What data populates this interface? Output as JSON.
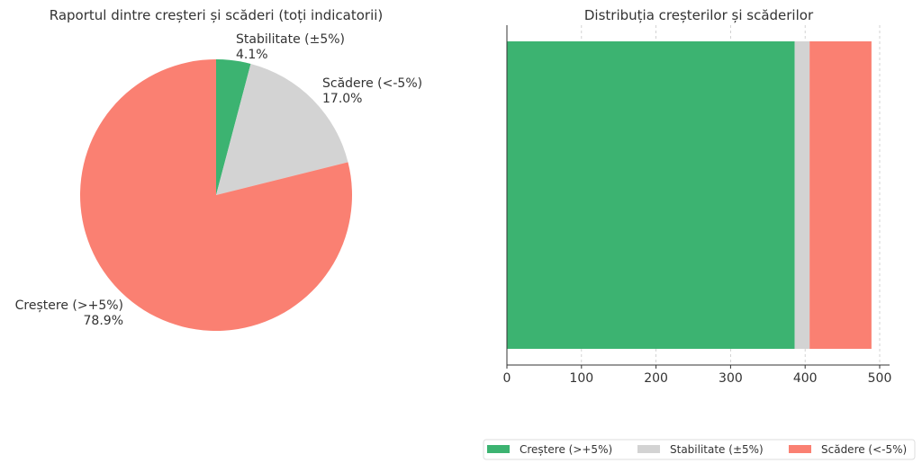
{
  "chart_data": [
    {
      "type": "pie",
      "title": "Raportul dintre creșteri și scăderi (toți indicatorii)",
      "start_angle_deg": 90,
      "direction": "clockwise",
      "slices": [
        {
          "label": "Stabilitate (±5%)",
          "value": 4.1,
          "pct_label": "4.1%",
          "color": "#3cb371"
        },
        {
          "label": "Scădere (<-5%)",
          "value": 17.0,
          "pct_label": "17.0%",
          "color": "#d3d3d3"
        },
        {
          "label": "Creștere (>+5%)",
          "value": 78.9,
          "pct_label": "78.9%",
          "color": "#fa8072"
        }
      ]
    },
    {
      "type": "bar",
      "orientation": "horizontal",
      "stacked": true,
      "title": "Distribuția creșterilor și scăderilor",
      "xlim": [
        0,
        500
      ],
      "xticks": [
        0,
        100,
        200,
        300,
        400,
        500
      ],
      "grid": "x dashed",
      "legend_position": "bottom-center",
      "series": [
        {
          "name": "Creștere (>+5%)",
          "value": 386,
          "color": "#3cb371"
        },
        {
          "name": "Stabilitate (±5%)",
          "value": 20,
          "color": "#d3d3d3"
        },
        {
          "name": "Scădere (<-5%)",
          "value": 83,
          "color": "#fa8072"
        }
      ]
    }
  ]
}
